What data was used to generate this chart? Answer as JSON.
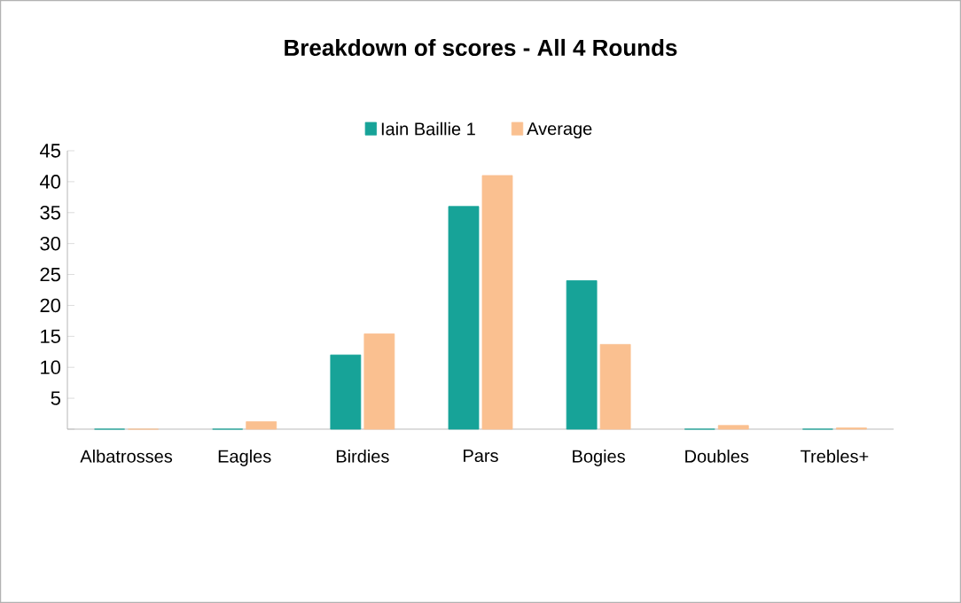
{
  "chart_data": {
    "type": "bar",
    "title": "Breakdown of scores - All 4 Rounds",
    "categories": [
      "Albatrosses",
      "Eagles",
      "Birdies",
      "Pars",
      "Bogies",
      "Doubles",
      "Trebles+"
    ],
    "series": [
      {
        "name": "Iain Baillie 1",
        "color": "#17a398",
        "values": [
          0,
          0,
          12,
          36,
          24,
          0,
          0
        ]
      },
      {
        "name": "Average",
        "color": "#fac090",
        "values": [
          0,
          1.2,
          15.4,
          41,
          13.7,
          0.6,
          0.2
        ]
      }
    ],
    "ylim": [
      0,
      45
    ],
    "yticks": [
      {
        "value": 0,
        "label": null
      },
      5,
      10,
      15,
      20,
      25,
      30,
      35,
      40,
      45
    ],
    "grid": false,
    "legend": "top"
  }
}
